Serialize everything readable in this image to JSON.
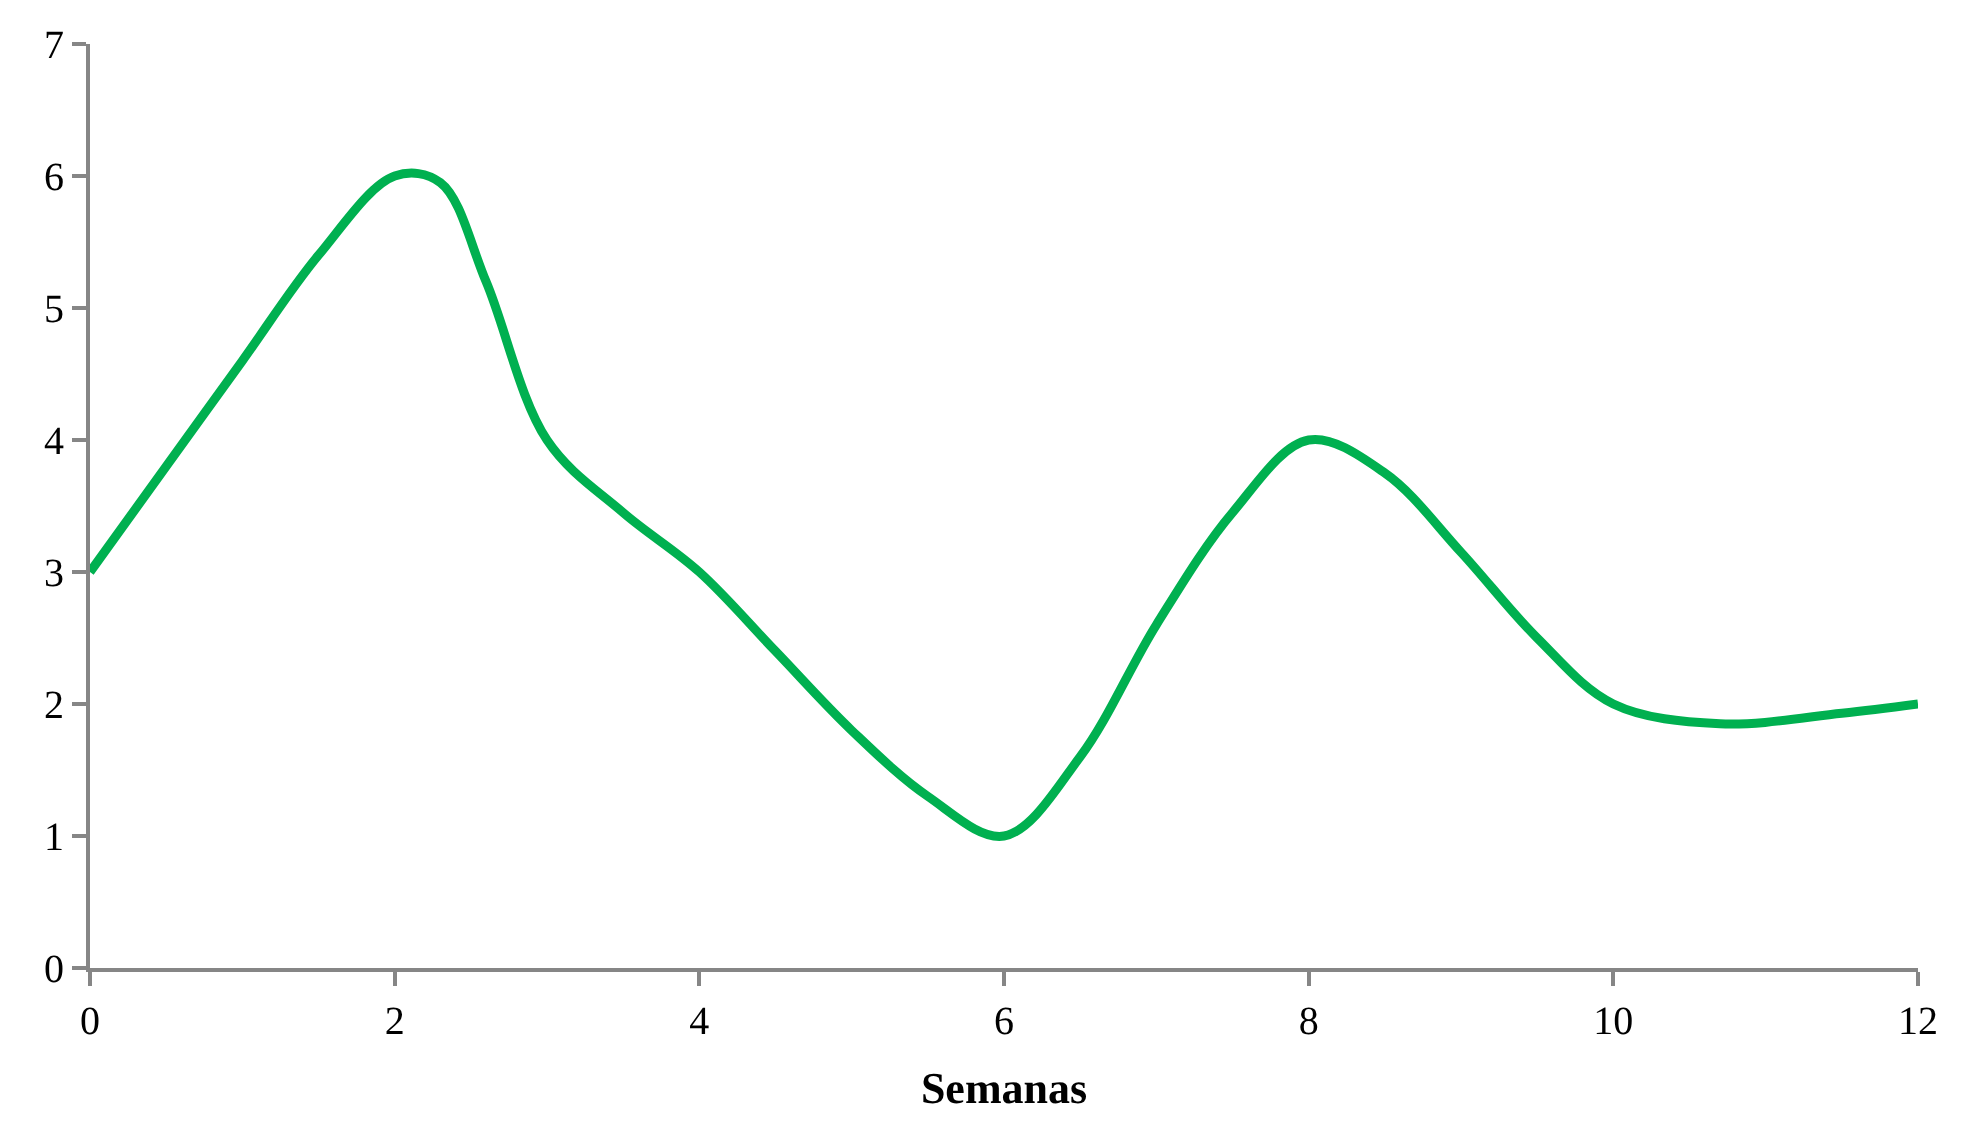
{
  "chart_data": {
    "type": "line",
    "xlabel": "Semanas",
    "x": [
      0,
      0.5,
      1,
      1.5,
      2,
      2.3,
      2.6,
      3,
      3.5,
      4,
      4.5,
      5,
      5.5,
      6,
      6.5,
      7,
      7.5,
      8,
      8.5,
      9,
      9.5,
      10,
      10.7,
      11.5,
      12
    ],
    "series": [
      {
        "color": "#00b050",
        "values": [
          3,
          3.8,
          4.6,
          5.4,
          6,
          5.95,
          5.2,
          4,
          3.45,
          3,
          2.4,
          1.8,
          1.3,
          1,
          1.6,
          2.6,
          3.45,
          4,
          3.75,
          3.15,
          2.5,
          2,
          1.85,
          1.93,
          2
        ]
      }
    ],
    "xlim": [
      0,
      12
    ],
    "xticks": [
      0,
      2,
      4,
      6,
      8,
      10,
      12
    ],
    "ylim": [
      0,
      7
    ],
    "yticks": [
      0,
      1,
      2,
      3,
      4,
      5,
      6,
      7
    ],
    "legend": false,
    "marker": "none",
    "line_style": "solid"
  }
}
